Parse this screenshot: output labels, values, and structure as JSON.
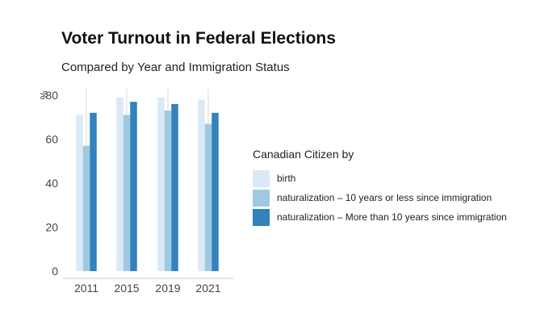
{
  "title": "Voter Turnout in Federal Elections",
  "subtitle": "Compared by Year and Immigration Status",
  "chart_data": {
    "type": "bar",
    "ylabel": "%",
    "ylim": [
      0,
      85
    ],
    "yticks": [
      0,
      20,
      40,
      60,
      80
    ],
    "categories": [
      "2011",
      "2015",
      "2019",
      "2021"
    ],
    "series": [
      {
        "name": "birth",
        "color": "#dbe9f6",
        "values": [
          71,
          79,
          79,
          78
        ]
      },
      {
        "name": "naturalization – 10 years or less since immigration",
        "color": "#9ecae1",
        "values": [
          57,
          71,
          73,
          67
        ]
      },
      {
        "name": "naturalization – More than 10 years since immigration",
        "color": "#3182bd",
        "values": [
          72,
          77,
          76,
          72
        ]
      }
    ],
    "grid": "vertical lines at categories",
    "legend": {
      "title": "Canadian Citizen by",
      "placement": "right"
    }
  }
}
